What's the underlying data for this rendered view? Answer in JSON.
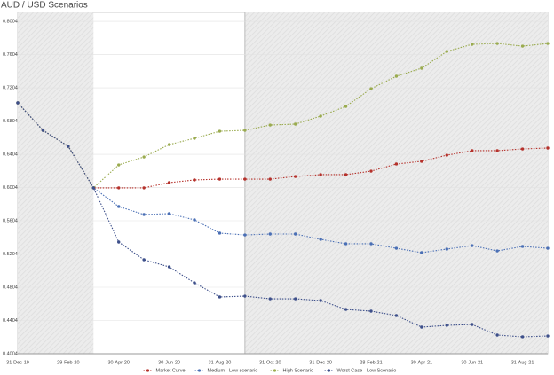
{
  "chart_data": {
    "type": "line",
    "title": "AUD / USD Scenarios",
    "categories": [
      "31-Dec-19",
      null,
      "29-Feb-20",
      null,
      "30-Apr-20",
      null,
      "30-Jun-20",
      null,
      "31-Aug-20",
      null,
      "31-Oct-20",
      null,
      "31-Dec-20",
      null,
      "28-Feb-21",
      null,
      "30-Apr-21",
      null,
      "30-Jun-21",
      null,
      "31-Aug-21",
      null
    ],
    "series": [
      {
        "name": "Market Curve",
        "color": "#b5312b",
        "values": [
          0.7023,
          0.6692,
          0.65,
          0.6,
          0.6,
          0.6,
          0.6063,
          0.6095,
          0.6105,
          0.6105,
          0.6105,
          0.6137,
          0.6159,
          0.6159,
          0.6201,
          0.6287,
          0.6319,
          0.6393,
          0.6447,
          0.6447,
          0.6468,
          0.6479
        ]
      },
      {
        "name": "Medium - Low scenario",
        "color": "#4a6fb5",
        "values": [
          0.7023,
          0.6692,
          0.65,
          0.6,
          0.5775,
          0.5679,
          0.569,
          0.5615,
          0.5455,
          0.5433,
          0.5444,
          0.5444,
          0.538,
          0.5327,
          0.5327,
          0.5273,
          0.522,
          0.5263,
          0.5305,
          0.5241,
          0.5295,
          0.5273
        ]
      },
      {
        "name": "High Scenario",
        "color": "#9aab4f",
        "values": [
          0.7023,
          0.6692,
          0.65,
          0.6,
          0.6276,
          0.6372,
          0.6521,
          0.6596,
          0.6681,
          0.6692,
          0.6756,
          0.6767,
          0.6863,
          0.698,
          0.7193,
          0.7343,
          0.7439,
          0.7641,
          0.7727,
          0.7737,
          0.7705,
          0.7737
        ]
      },
      {
        "name": "Worst Case - Low Scenario",
        "color": "#3d4f8a",
        "values": [
          0.7023,
          0.6692,
          0.65,
          0.6,
          0.5348,
          0.5135,
          0.5049,
          0.4857,
          0.4687,
          0.4697,
          0.4665,
          0.4665,
          0.4644,
          0.4537,
          0.4516,
          0.4463,
          0.4324,
          0.4345,
          0.4356,
          0.4228,
          0.4207,
          0.4217
        ]
      }
    ],
    "ylim": [
      0.4004,
      0.8111
    ],
    "yticks": [
      0.4004,
      0.4404,
      0.4804,
      0.5204,
      0.5604,
      0.6004,
      0.6404,
      0.6804,
      0.7204,
      0.7604,
      0.8004
    ],
    "grid": true
  }
}
